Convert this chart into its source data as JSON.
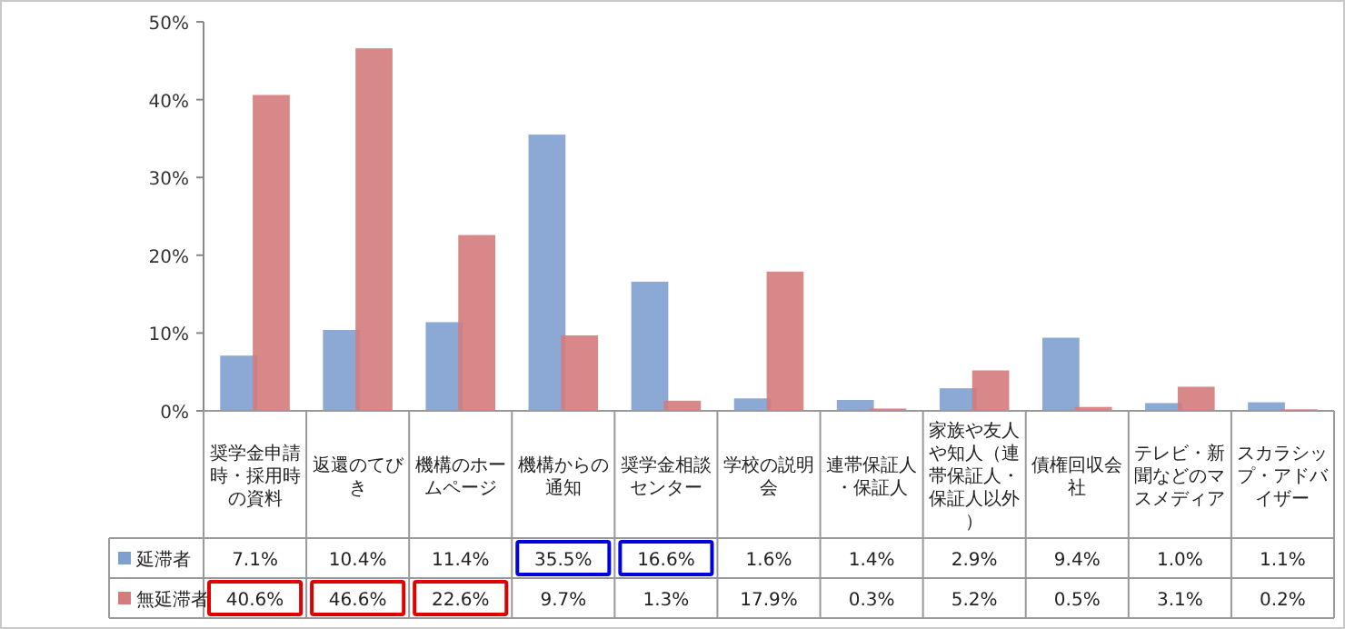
{
  "chart_data": {
    "type": "bar",
    "categories": [
      "奨学金申請時・採用時の資料",
      "返還のてびき",
      "機構のホームページ",
      "機構からの通知",
      "奨学金相談センター",
      "学校の説明会",
      "連帯保証人・保証人",
      "家族や友人や知人（連帯保証人・保証人以外）",
      "債権回収会社",
      "テレビ・新聞などのマスメディア",
      "スカラシップ・アドバイザー"
    ],
    "series": [
      {
        "name": "延滞者",
        "color": "#7f9fcf",
        "values": [
          7.1,
          10.4,
          11.4,
          35.5,
          16.6,
          1.6,
          1.4,
          2.9,
          9.4,
          1.0,
          1.1
        ],
        "value_labels": [
          "7.1%",
          "10.4%",
          "11.4%",
          "35.5%",
          "16.6%",
          "1.6%",
          "1.4%",
          "2.9%",
          "9.4%",
          "1.0%",
          "1.1%"
        ]
      },
      {
        "name": "無延滞者",
        "color": "#d47b7b",
        "values": [
          40.6,
          46.6,
          22.6,
          9.7,
          1.3,
          17.9,
          0.3,
          5.2,
          0.5,
          3.1,
          0.2
        ],
        "value_labels": [
          "40.6%",
          "46.6%",
          "22.6%",
          "9.7%",
          "1.3%",
          "17.9%",
          "0.3%",
          "5.2%",
          "0.5%",
          "3.1%",
          "0.2%"
        ]
      }
    ],
    "ylim": [
      0,
      50
    ],
    "yticks": [
      {
        "value": 0,
        "label": "0%"
      },
      {
        "value": 10,
        "label": "10%"
      },
      {
        "value": 20,
        "label": "20%"
      },
      {
        "value": 30,
        "label": "30%"
      },
      {
        "value": 40,
        "label": "40%"
      },
      {
        "value": 50,
        "label": "50%"
      }
    ],
    "grid": false,
    "legend": "bottom"
  }
}
